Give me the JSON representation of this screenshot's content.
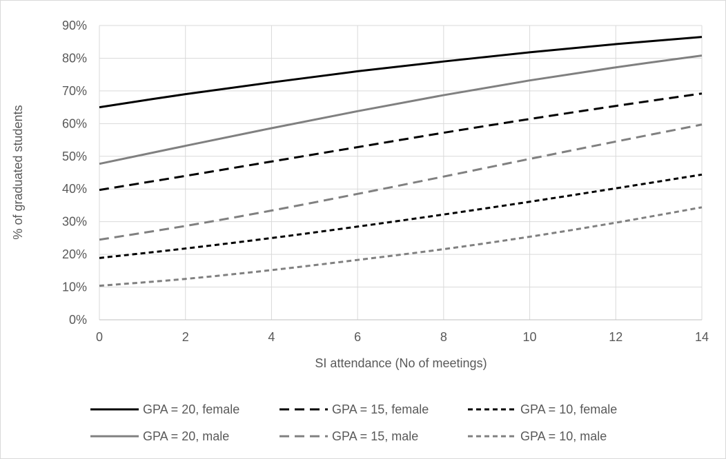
{
  "chart_data": {
    "type": "line",
    "title": "",
    "xlabel": "SI attendance (No of meetings)",
    "ylabel": "% of graduated students",
    "xlim": [
      0,
      14
    ],
    "ylim": [
      0,
      0.9
    ],
    "x_ticks": [
      "0",
      "2",
      "4",
      "6",
      "8",
      "10",
      "12",
      "14"
    ],
    "y_ticks": [
      "0%",
      "10%",
      "20%",
      "30%",
      "40%",
      "50%",
      "60%",
      "70%",
      "80%",
      "90%"
    ],
    "grid": true,
    "legend_position": "bottom",
    "x": [
      0,
      2,
      4,
      6,
      8,
      10,
      12,
      14
    ],
    "series": [
      {
        "name": "GPA = 20, female",
        "color": "#000000",
        "dash": "solid",
        "values": [
          0.65,
          0.69,
          0.726,
          0.76,
          0.79,
          0.818,
          0.843,
          0.865
        ]
      },
      {
        "name": "GPA = 15, female",
        "color": "#000000",
        "dash": "long-dash",
        "values": [
          0.397,
          0.44,
          0.484,
          0.528,
          0.572,
          0.614,
          0.654,
          0.692
        ]
      },
      {
        "name": "GPA = 10, female",
        "color": "#000000",
        "dash": "short-dash",
        "values": [
          0.189,
          0.218,
          0.25,
          0.285,
          0.322,
          0.361,
          0.402,
          0.444
        ]
      },
      {
        "name": "GPA = 20, male",
        "color": "#808080",
        "dash": "solid",
        "values": [
          0.477,
          0.532,
          0.586,
          0.638,
          0.687,
          0.732,
          0.772,
          0.808
        ]
      },
      {
        "name": "GPA = 15, male",
        "color": "#808080",
        "dash": "long-dash",
        "values": [
          0.245,
          0.287,
          0.334,
          0.385,
          0.438,
          0.492,
          0.545,
          0.597
        ]
      },
      {
        "name": "GPA = 10, male",
        "color": "#808080",
        "dash": "short-dash",
        "values": [
          0.104,
          0.125,
          0.152,
          0.183,
          0.216,
          0.254,
          0.297,
          0.344
        ]
      }
    ]
  }
}
